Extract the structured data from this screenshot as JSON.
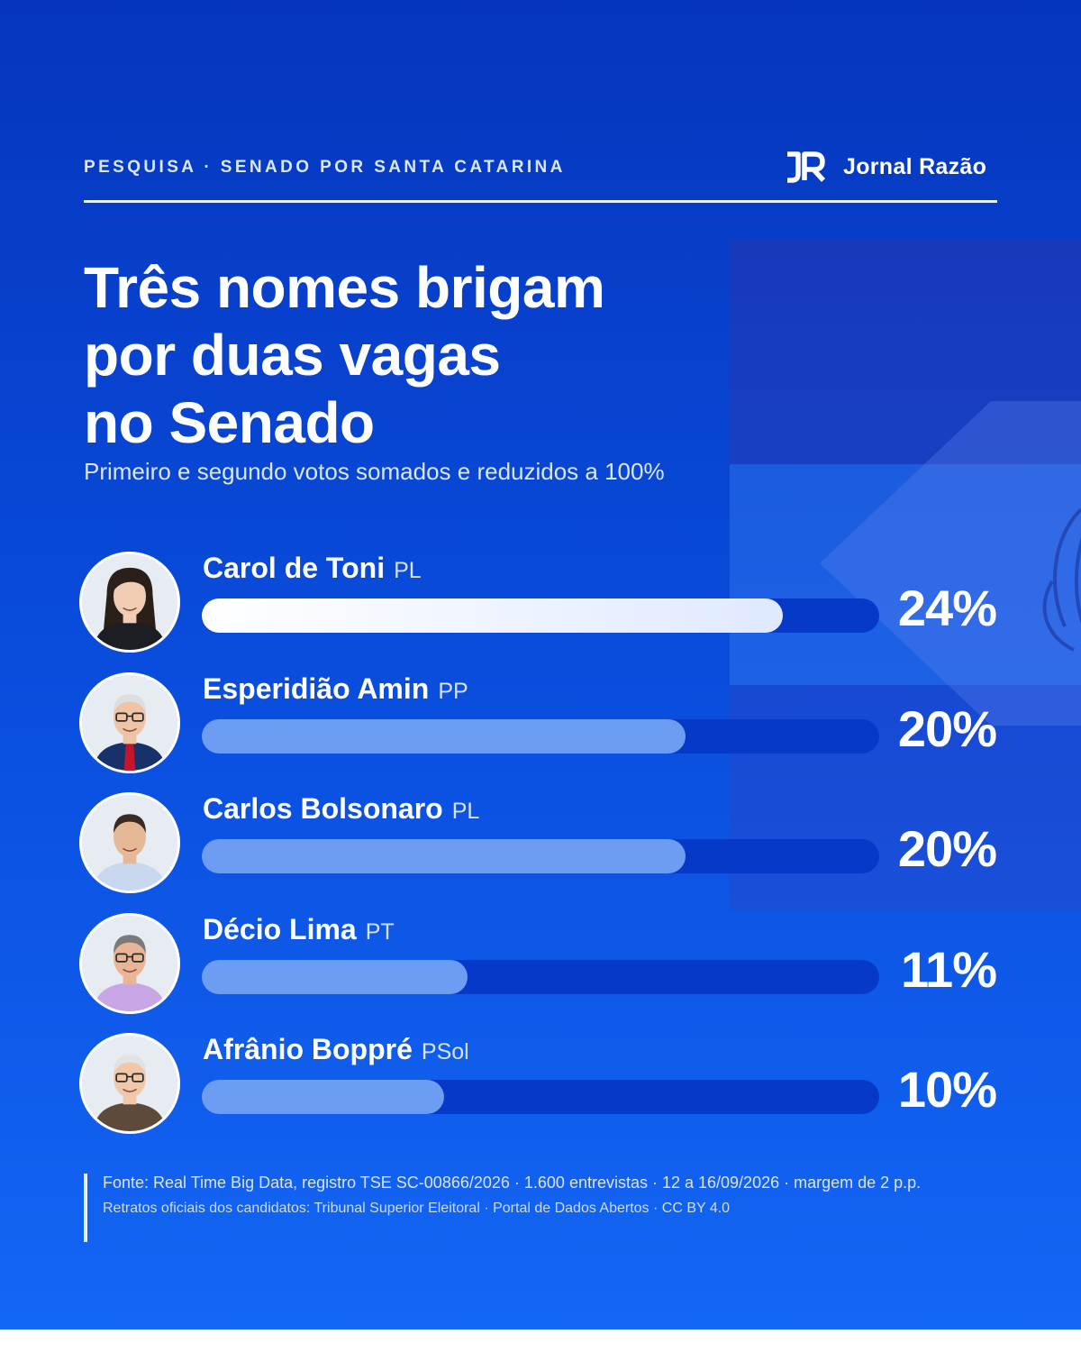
{
  "header": {
    "kicker": "PESQUISA · SENADO POR SANTA CATARINA",
    "brand_logo": "JR",
    "brand_name": "Jornal Razão"
  },
  "colors": {
    "background_top": "#0535bd",
    "background_bottom": "#1466f4",
    "bar_track": "#0739c8",
    "bar_fill": "#6d9cf3",
    "bar_fill_lead": "#ffffff"
  },
  "decor": {
    "background_icon": "santa-catarina-flag-icon"
  },
  "chart_data": {
    "type": "bar",
    "title": [
      "Três nomes brigam",
      "por duas vagas",
      "no Senado"
    ],
    "subtitle": "Primeiro e segundo votos somados e reduzidos a 100%",
    "categories": [
      "Carol de Toni",
      "Esperidião Amin",
      "Carlos Bolsonaro",
      "Décio Lima",
      "Afrânio Boppré"
    ],
    "parties": [
      "PL",
      "PP",
      "PL",
      "PT",
      "PSol"
    ],
    "values": [
      24,
      20,
      20,
      11,
      10
    ],
    "value_labels": [
      "24%",
      "20%",
      "20%",
      "11%",
      "10%"
    ],
    "unit": "%",
    "orientation": "horizontal",
    "xlim": [
      0,
      28
    ],
    "grid": false,
    "legend": "none"
  },
  "footer": {
    "source": "Fonte: Real Time Big Data, registro TSE SC-00866/2026 · 1.600 entrevistas · 12 a 16/09/2026 · margem de 2 p.p.",
    "credits": "Retratos oficiais dos candidatos: Tribunal Superior Eleitoral · Portal de Dados Abertos · CC BY 4.0"
  }
}
